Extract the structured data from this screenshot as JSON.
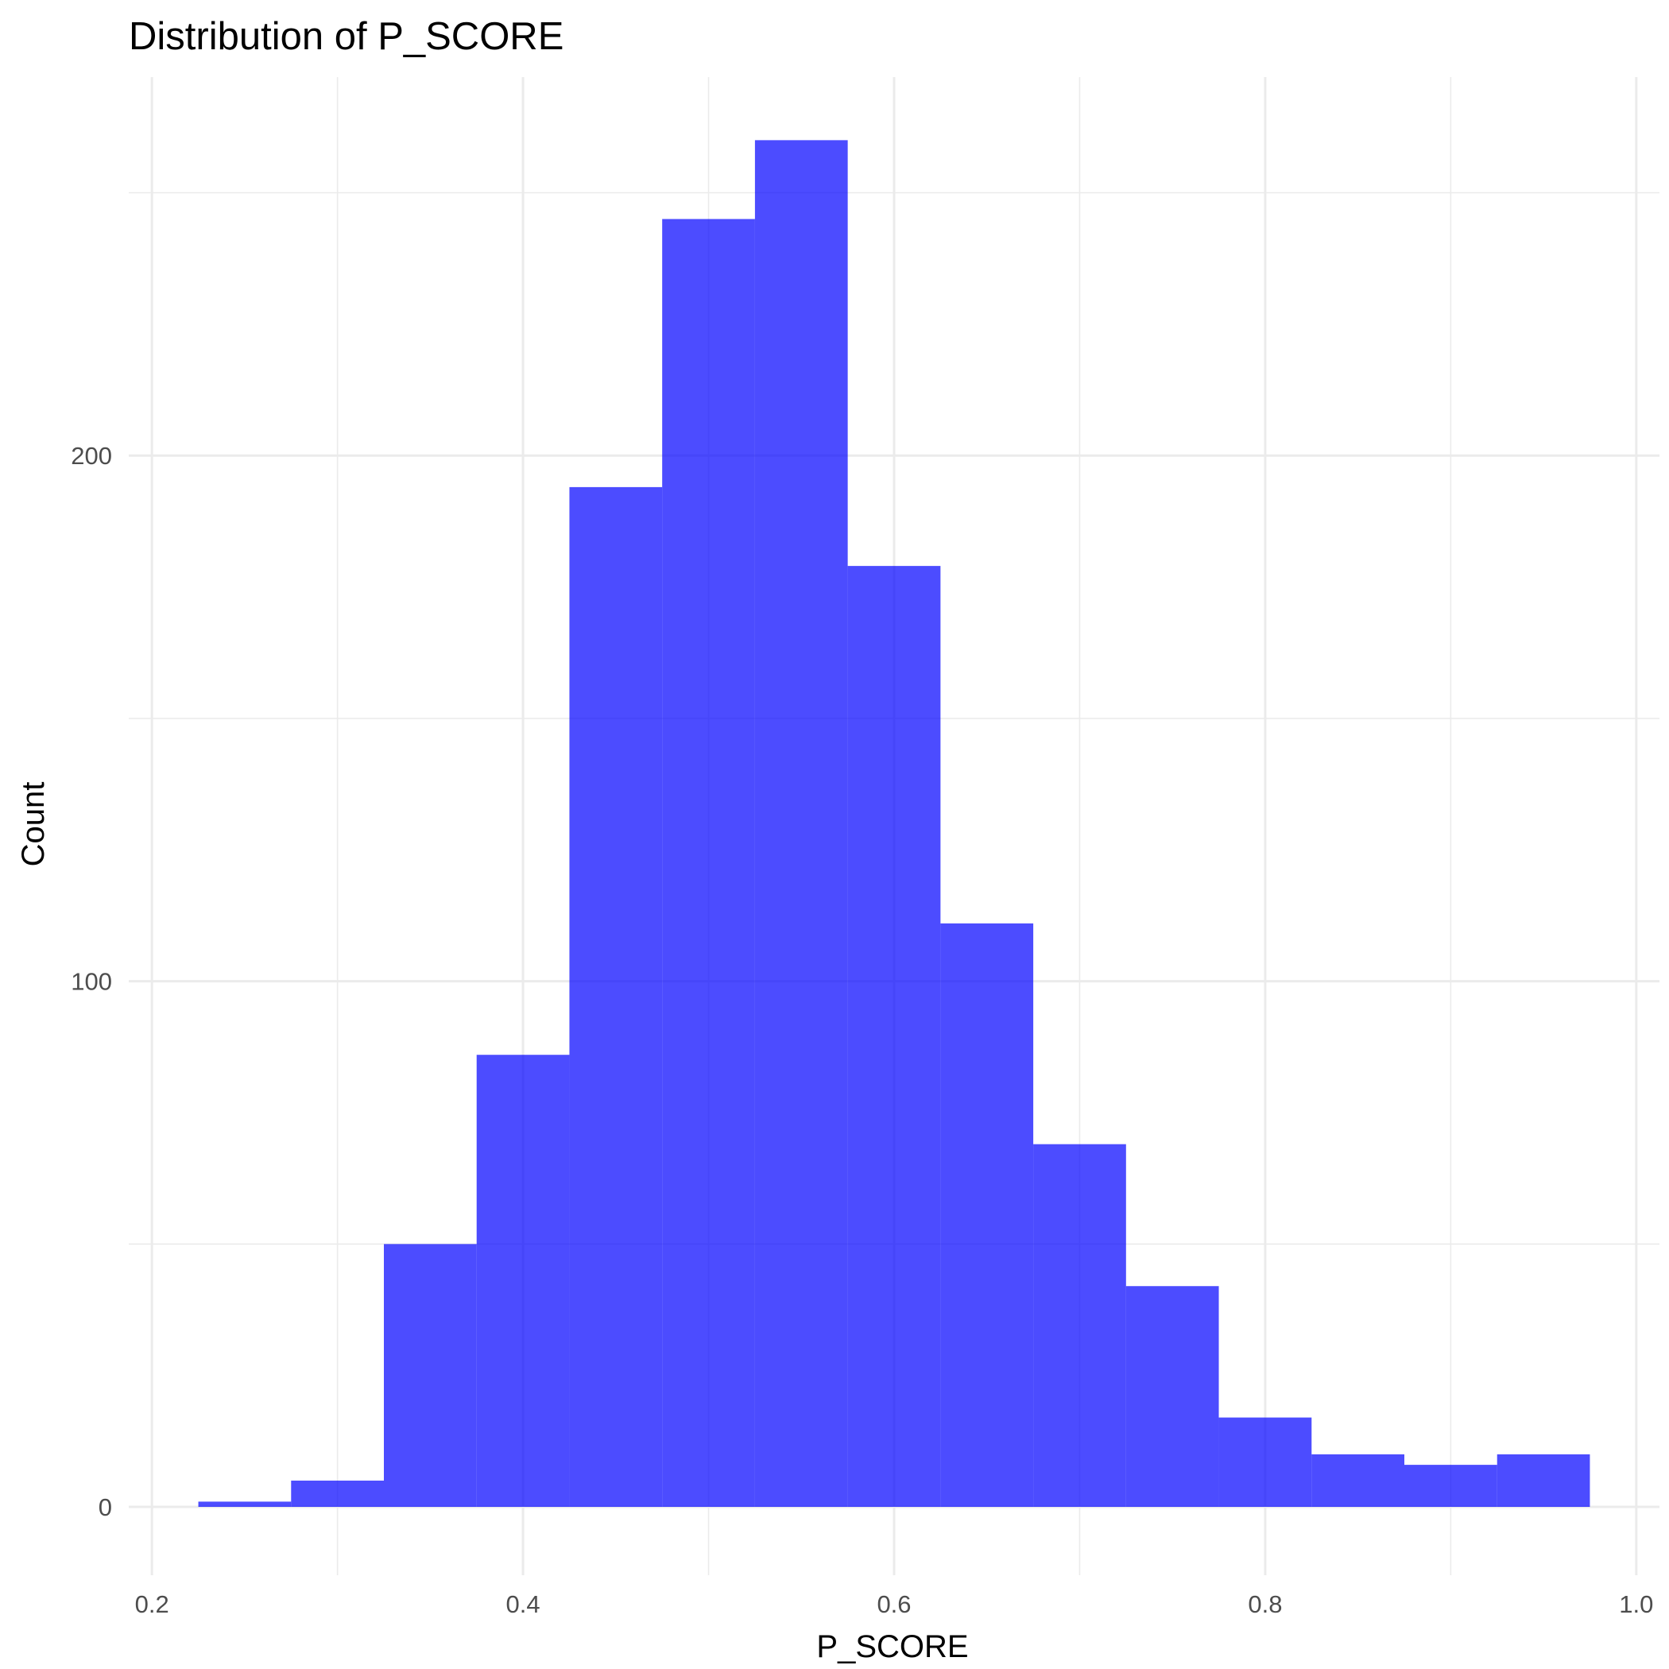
{
  "chart_data": {
    "type": "bar",
    "title": "Distribution of P_SCORE",
    "xlabel": "P_SCORE",
    "ylabel": "Count",
    "bin_width": 0.05,
    "bins": [
      {
        "x0": 0.225,
        "x1": 0.275,
        "count": 1
      },
      {
        "x0": 0.275,
        "x1": 0.325,
        "count": 5
      },
      {
        "x0": 0.325,
        "x1": 0.375,
        "count": 50
      },
      {
        "x0": 0.375,
        "x1": 0.425,
        "count": 86
      },
      {
        "x0": 0.425,
        "x1": 0.475,
        "count": 194
      },
      {
        "x0": 0.475,
        "x1": 0.525,
        "count": 245
      },
      {
        "x0": 0.525,
        "x1": 0.575,
        "count": 260
      },
      {
        "x0": 0.575,
        "x1": 0.625,
        "count": 179
      },
      {
        "x0": 0.625,
        "x1": 0.675,
        "count": 111
      },
      {
        "x0": 0.675,
        "x1": 0.725,
        "count": 69
      },
      {
        "x0": 0.725,
        "x1": 0.775,
        "count": 42
      },
      {
        "x0": 0.775,
        "x1": 0.825,
        "count": 17
      },
      {
        "x0": 0.825,
        "x1": 0.875,
        "count": 10
      },
      {
        "x0": 0.875,
        "x1": 0.925,
        "count": 8
      },
      {
        "x0": 0.925,
        "x1": 0.975,
        "count": 10
      }
    ],
    "xlim": [
      0.1875,
      1.0125
    ],
    "ylim": [
      -13,
      272
    ],
    "x_ticks": [
      0.2,
      0.4,
      0.6,
      0.8,
      1.0
    ],
    "x_tick_labels": [
      "0.2",
      "0.4",
      "0.6",
      "0.8",
      "1.0"
    ],
    "x_minor_ticks": [
      0.3,
      0.5,
      0.7,
      0.9
    ],
    "y_ticks": [
      0,
      100,
      200
    ],
    "y_tick_labels": [
      "0",
      "100",
      "200"
    ],
    "y_minor_ticks": [
      50,
      150,
      250
    ],
    "grid": true,
    "legend": "none",
    "bar_color": "#0000FF",
    "bar_opacity": 0.7
  }
}
